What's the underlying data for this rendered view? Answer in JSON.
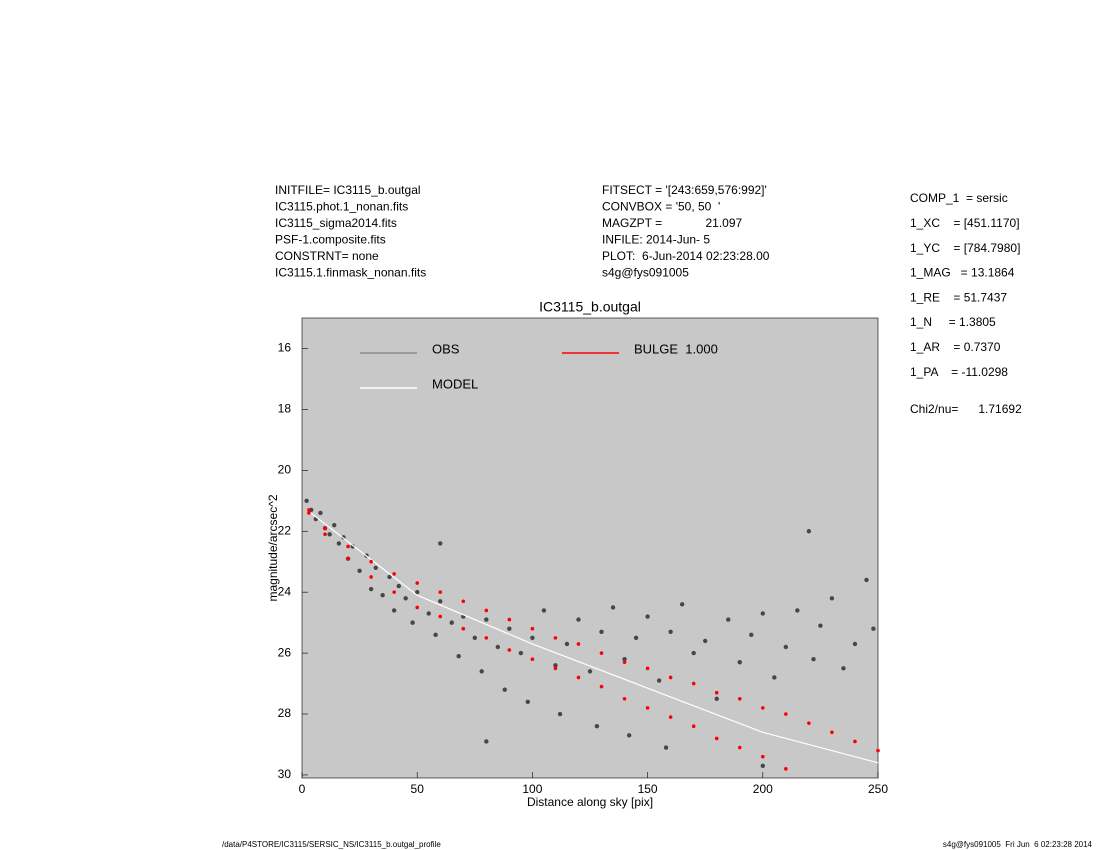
{
  "header": {
    "left": [
      "INITFILE= IC3115_b.outgal",
      "IC3115.phot.1_nonan.fits",
      "IC3115_sigma2014.fits",
      "PSF-1.composite.fits",
      "CONSTRNT= none",
      "IC3115.1.finmask_nonan.fits"
    ],
    "middle": [
      "FITSECT = '[243:659,576:992]'",
      "CONVBOX = '50, 50  '",
      "MAGZPT =             21.097",
      "INFILE: 2014-Jun- 5",
      "PLOT:  6-Jun-2014 02:23:28.00",
      "s4g@fys091005"
    ]
  },
  "parameters": [
    "COMP_1  = sersic",
    "1_XC    = [451.1170]",
    "1_YC    = [784.7980]",
    "1_MAG   = 13.1864",
    "1_RE    = 51.7437",
    "1_N     = 1.3805",
    "1_AR    = 0.7370",
    "1_PA    = -11.0298"
  ],
  "chi2": "Chi2/nu=      1.71692",
  "footer": {
    "left": "/data/P4STORE/IC3115/SERSIC_NS/IC3115_b.outgal_profile",
    "right": "s4g@fys091005  Fri Jun  6 02:23:28 2014"
  },
  "chart_data": {
    "type": "scatter",
    "title": "IC3115_b.outgal",
    "xlabel": "Distance along sky [pix]",
    "ylabel": "magnitude/arcsec^2",
    "xlim": [
      0,
      250
    ],
    "ylim": [
      15,
      30.1
    ],
    "y_inverted": true,
    "xticks": [
      0,
      50,
      100,
      150,
      200,
      250
    ],
    "yticks": [
      16,
      18,
      20,
      22,
      24,
      26,
      28,
      30
    ],
    "background": "#c8c8c8",
    "series": [
      {
        "name": "OBS",
        "color": "#8c8c8c",
        "marker_color": "#474747",
        "style": "points",
        "x": [
          2,
          4,
          6,
          8,
          10,
          12,
          14,
          16,
          18,
          20,
          22,
          25,
          28,
          30,
          32,
          35,
          38,
          40,
          42,
          45,
          48,
          50,
          55,
          58,
          60,
          65,
          68,
          70,
          75,
          78,
          80,
          85,
          88,
          90,
          95,
          98,
          100,
          105,
          110,
          112,
          115,
          120,
          125,
          128,
          130,
          135,
          140,
          142,
          145,
          150,
          155,
          158,
          160,
          165,
          170,
          175,
          180,
          185,
          190,
          195,
          200,
          205,
          210,
          215,
          220,
          222,
          225,
          230,
          235,
          240,
          245,
          248,
          60,
          200,
          80
        ],
        "y": [
          21.0,
          21.3,
          21.6,
          21.4,
          21.9,
          22.1,
          21.8,
          22.4,
          22.2,
          22.9,
          22.5,
          23.3,
          22.8,
          23.9,
          23.2,
          24.1,
          23.5,
          24.6,
          23.8,
          24.2,
          25.0,
          24.0,
          24.7,
          25.4,
          24.3,
          25.0,
          26.1,
          24.8,
          25.5,
          26.6,
          24.9,
          25.8,
          27.2,
          25.2,
          26.0,
          27.6,
          25.5,
          24.6,
          26.4,
          28.0,
          25.7,
          24.9,
          26.6,
          28.4,
          25.3,
          24.5,
          26.2,
          28.7,
          25.5,
          24.8,
          26.9,
          29.1,
          25.3,
          24.4,
          26.0,
          25.6,
          27.5,
          24.9,
          26.3,
          25.4,
          24.7,
          26.8,
          25.8,
          24.6,
          22.0,
          26.2,
          25.1,
          24.2,
          26.5,
          25.7,
          23.6,
          25.2,
          22.4,
          29.7,
          28.9
        ]
      },
      {
        "name": "MODEL",
        "color": "#ffffff",
        "style": "line",
        "x": [
          3,
          50,
          100,
          150,
          200,
          250
        ],
        "y": [
          21.35,
          24.1,
          25.7,
          27.15,
          28.6,
          29.6
        ]
      },
      {
        "name": "BULGE  1.000",
        "color": "#ff0000",
        "style": "points",
        "x": [
          3,
          10,
          20,
          30,
          40,
          50,
          60,
          70,
          80,
          90,
          100,
          110,
          120,
          130,
          140,
          150,
          160,
          170,
          180,
          190,
          200,
          210,
          220,
          230,
          240,
          250,
          3,
          10,
          20,
          30,
          40,
          50,
          60,
          70,
          80,
          90,
          100,
          110,
          120,
          130,
          140,
          150,
          160,
          170,
          180,
          190,
          200,
          210
        ],
        "y": [
          21.3,
          21.9,
          22.5,
          23.0,
          23.4,
          23.7,
          24.0,
          24.3,
          24.6,
          24.9,
          25.2,
          25.5,
          25.7,
          26.0,
          26.3,
          26.5,
          26.8,
          27.0,
          27.3,
          27.5,
          27.8,
          28.0,
          28.3,
          28.6,
          28.9,
          29.2,
          21.4,
          22.1,
          22.9,
          23.5,
          24.0,
          24.5,
          24.8,
          25.2,
          25.5,
          25.9,
          26.2,
          26.5,
          26.8,
          27.1,
          27.5,
          27.8,
          28.1,
          28.4,
          28.8,
          29.1,
          29.4,
          29.8
        ]
      }
    ]
  }
}
